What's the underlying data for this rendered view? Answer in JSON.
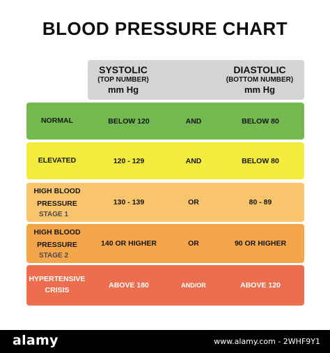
{
  "chart_data": {
    "type": "table",
    "title": "BLOOD PRESSURE CHART",
    "columns": [
      {
        "name": "SYSTOLIC",
        "subtitle": "(TOP NUMBER)",
        "unit": "mm Hg"
      },
      {
        "name": "DIASTOLIC",
        "subtitle": "(BOTTOM NUMBER)",
        "unit": "mm Hg"
      }
    ],
    "rows": [
      {
        "category": "NORMAL",
        "category_sub": "",
        "systolic": "BELOW 120",
        "connector": "AND",
        "diastolic": "BELOW 80",
        "color": "#73b94f"
      },
      {
        "category": "ELEVATED",
        "category_sub": "",
        "systolic": "120 - 129",
        "connector": "AND",
        "diastolic": "BELOW 80",
        "color": "#f3ec3e"
      },
      {
        "category": "HIGH BLOOD PRESSURE",
        "category_sub": "STAGE 1",
        "systolic": "130 - 139",
        "connector": "OR",
        "diastolic": "80 - 89",
        "color": "#f8c46c"
      },
      {
        "category": "HIGH BLOOD PRESSURE",
        "category_sub": "STAGE 2",
        "systolic": "140 OR HIGHER",
        "connector": "OR",
        "diastolic": "90 OR HIGHER",
        "color": "#f5a64b"
      },
      {
        "category": "HYPERTENSIVE CRISIS",
        "category_sub": "",
        "systolic": "ABOVE 180",
        "connector": "AND/OR",
        "diastolic": "ABOVE 120",
        "color": "#ec6e4e"
      }
    ]
  },
  "header_color": "#d4d4d4",
  "footer": {
    "logo": "alamy",
    "image_id": "www.alamy.com - 2WHF9Y1"
  }
}
